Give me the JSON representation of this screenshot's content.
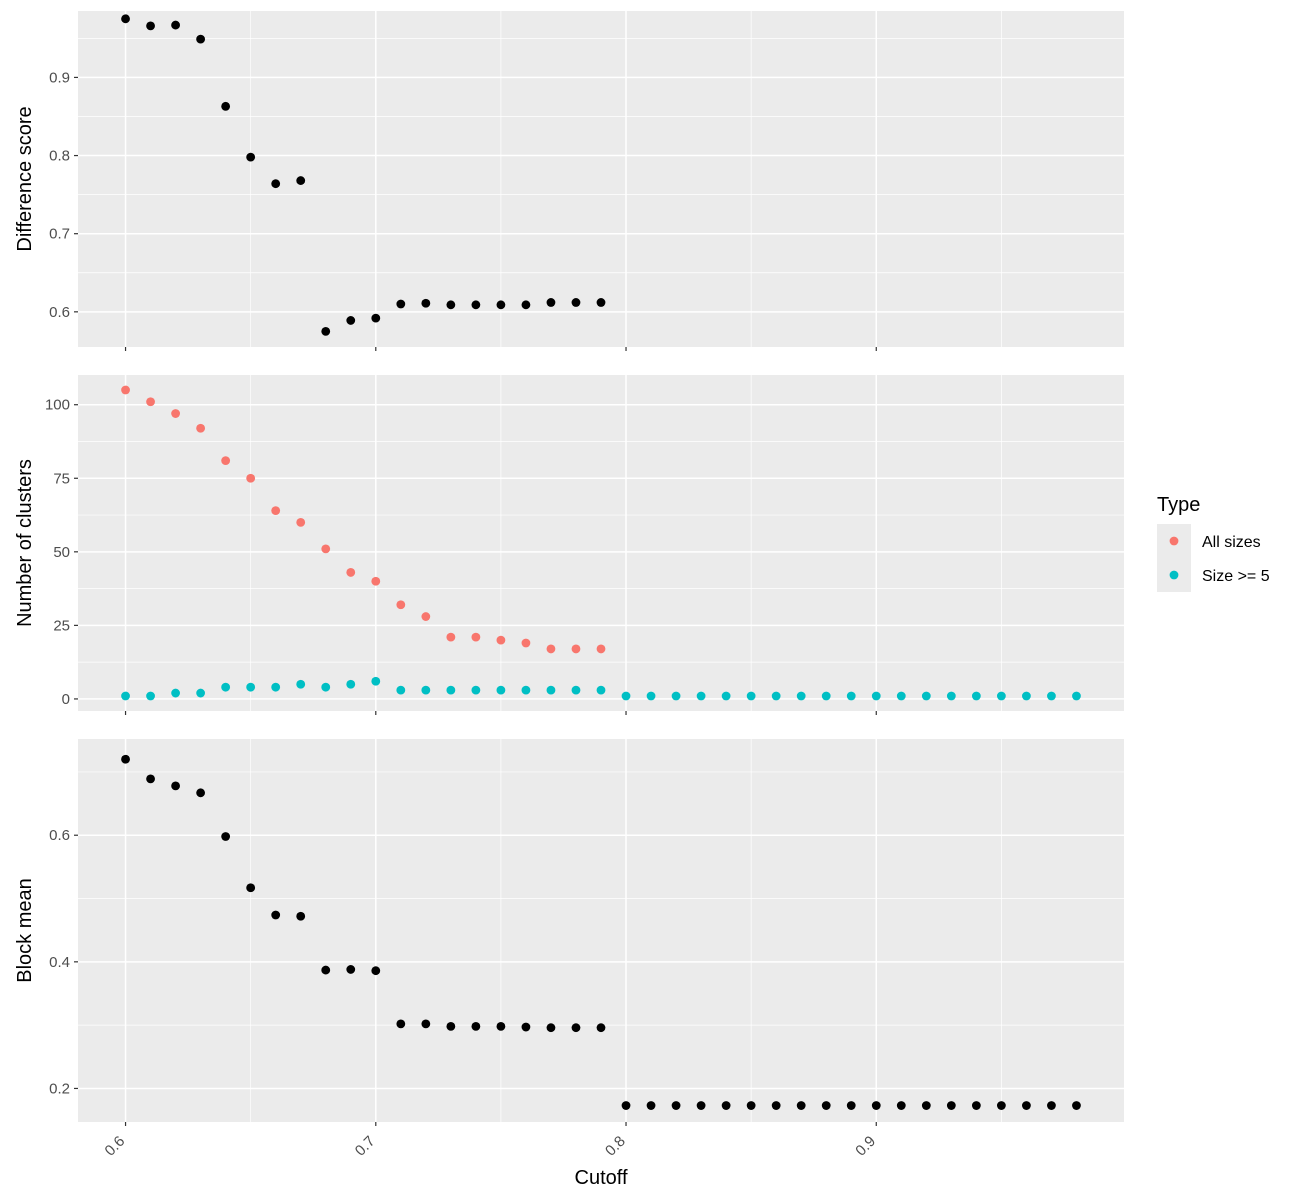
{
  "chart_data": {
    "type": "scatter",
    "x_axis": {
      "title": "Cutoff",
      "range": [
        0.581,
        0.999
      ],
      "ticks": [
        0.6,
        0.7,
        0.8,
        0.9
      ],
      "tick_labels": [
        "0.6",
        "0.7",
        "0.8",
        "0.9"
      ]
    },
    "legend": {
      "title": "Type",
      "placement": "right",
      "entries": [
        {
          "label": "All sizes",
          "color": "#f8766d"
        },
        {
          "label": "Size >= 5",
          "color": "#00bfc4"
        }
      ]
    },
    "grid": true,
    "panels": [
      {
        "ylabel": "Difference score",
        "ylim": [
          0.555,
          0.985
        ],
        "yticks": [
          0.6,
          0.7,
          0.8,
          0.9
        ],
        "ytick_labels": [
          "0.6",
          "0.7",
          "0.8",
          "0.9"
        ],
        "series": [
          {
            "color": "#000000",
            "x": [
              0.6,
              0.61,
              0.62,
              0.63,
              0.64,
              0.65,
              0.66,
              0.67,
              0.68,
              0.69,
              0.7,
              0.71,
              0.72,
              0.73,
              0.74,
              0.75,
              0.76,
              0.77,
              0.78,
              0.79
            ],
            "y": [
              0.975,
              0.966,
              0.967,
              0.949,
              0.863,
              0.798,
              0.764,
              0.768,
              0.575,
              0.589,
              0.592,
              0.61,
              0.611,
              0.609,
              0.609,
              0.609,
              0.609,
              0.612,
              0.612,
              0.612
            ]
          }
        ]
      },
      {
        "ylabel": "Number of clusters",
        "ylim": [
          -4.1,
          110.1
        ],
        "yticks": [
          0,
          25,
          50,
          75,
          100
        ],
        "ytick_labels": [
          "0",
          "25",
          "50",
          "75",
          "100"
        ],
        "series": [
          {
            "name": "All sizes",
            "color": "#f8766d",
            "x": [
              0.6,
              0.61,
              0.62,
              0.63,
              0.64,
              0.65,
              0.66,
              0.67,
              0.68,
              0.69,
              0.7,
              0.71,
              0.72,
              0.73,
              0.74,
              0.75,
              0.76,
              0.77,
              0.78,
              0.79
            ],
            "y": [
              105,
              101,
              97,
              92,
              81,
              75,
              64,
              60,
              51,
              43,
              40,
              32,
              28,
              21,
              21,
              20,
              19,
              17,
              17,
              17
            ]
          },
          {
            "name": "Size >= 5",
            "color": "#00bfc4",
            "x": [
              0.6,
              0.61,
              0.62,
              0.63,
              0.64,
              0.65,
              0.66,
              0.67,
              0.68,
              0.69,
              0.7,
              0.71,
              0.72,
              0.73,
              0.74,
              0.75,
              0.76,
              0.77,
              0.78,
              0.79,
              0.8,
              0.81,
              0.82,
              0.83,
              0.84,
              0.85,
              0.86,
              0.87,
              0.88,
              0.89,
              0.9,
              0.91,
              0.92,
              0.93,
              0.94,
              0.95,
              0.96,
              0.97,
              0.98
            ],
            "y": [
              1,
              1,
              2,
              2,
              4,
              4,
              4,
              5,
              4,
              5,
              6,
              3,
              3,
              3,
              3,
              3,
              3,
              3,
              3,
              3,
              1,
              1,
              1,
              1,
              1,
              1,
              1,
              1,
              1,
              1,
              1,
              1,
              1,
              1,
              1,
              1,
              1,
              1,
              1
            ]
          }
        ]
      },
      {
        "ylabel": "Block mean",
        "ylim": [
          0.147,
          0.752
        ],
        "yticks": [
          0.2,
          0.4,
          0.6
        ],
        "ytick_labels": [
          "0.2",
          "0.4",
          "0.6"
        ],
        "series": [
          {
            "color": "#000000",
            "x": [
              0.6,
              0.61,
              0.62,
              0.63,
              0.64,
              0.65,
              0.66,
              0.67,
              0.68,
              0.69,
              0.7,
              0.71,
              0.72,
              0.73,
              0.74,
              0.75,
              0.76,
              0.77,
              0.78,
              0.79,
              0.8,
              0.81,
              0.82,
              0.83,
              0.84,
              0.85,
              0.86,
              0.87,
              0.88,
              0.89,
              0.9,
              0.91,
              0.92,
              0.93,
              0.94,
              0.95,
              0.96,
              0.97,
              0.98
            ],
            "y": [
              0.72,
              0.689,
              0.678,
              0.667,
              0.598,
              0.517,
              0.474,
              0.472,
              0.387,
              0.388,
              0.386,
              0.302,
              0.302,
              0.298,
              0.298,
              0.298,
              0.297,
              0.296,
              0.296,
              0.296,
              0.173,
              0.173,
              0.173,
              0.173,
              0.173,
              0.173,
              0.173,
              0.173,
              0.173,
              0.173,
              0.173,
              0.173,
              0.173,
              0.173,
              0.173,
              0.173,
              0.173,
              0.173,
              0.173
            ]
          }
        ]
      }
    ]
  }
}
